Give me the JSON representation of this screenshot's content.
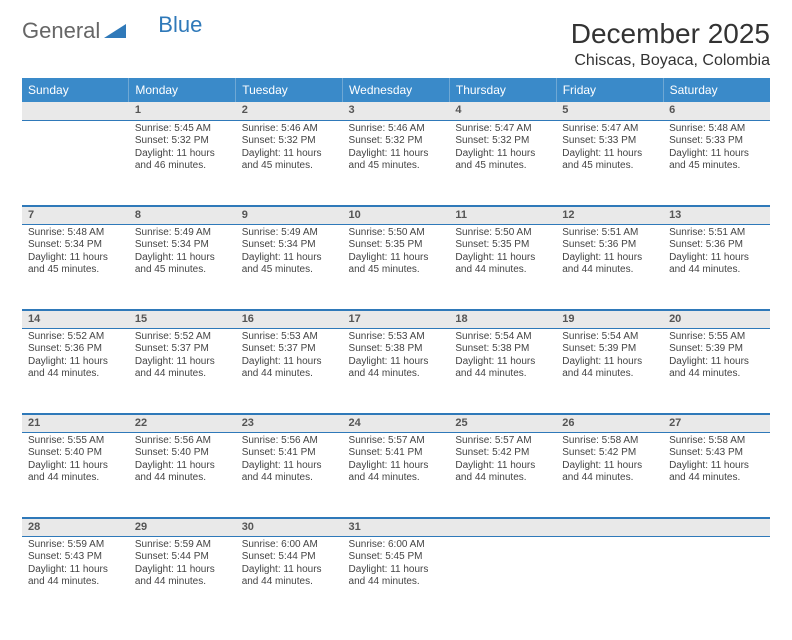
{
  "brand": {
    "part1": "General",
    "part2": "Blue"
  },
  "title": "December 2025",
  "location": "Chiscas, Boyaca, Colombia",
  "colors": {
    "header_bg": "#3a8ac9",
    "rule": "#2f79b9",
    "daynum_bg": "#e9e9e9",
    "text": "#333333"
  },
  "weekdays": [
    "Sunday",
    "Monday",
    "Tuesday",
    "Wednesday",
    "Thursday",
    "Friday",
    "Saturday"
  ],
  "weeks": [
    [
      null,
      {
        "n": "1",
        "sr": "Sunrise: 5:45 AM",
        "ss": "Sunset: 5:32 PM",
        "d1": "Daylight: 11 hours",
        "d2": "and 46 minutes."
      },
      {
        "n": "2",
        "sr": "Sunrise: 5:46 AM",
        "ss": "Sunset: 5:32 PM",
        "d1": "Daylight: 11 hours",
        "d2": "and 45 minutes."
      },
      {
        "n": "3",
        "sr": "Sunrise: 5:46 AM",
        "ss": "Sunset: 5:32 PM",
        "d1": "Daylight: 11 hours",
        "d2": "and 45 minutes."
      },
      {
        "n": "4",
        "sr": "Sunrise: 5:47 AM",
        "ss": "Sunset: 5:32 PM",
        "d1": "Daylight: 11 hours",
        "d2": "and 45 minutes."
      },
      {
        "n": "5",
        "sr": "Sunrise: 5:47 AM",
        "ss": "Sunset: 5:33 PM",
        "d1": "Daylight: 11 hours",
        "d2": "and 45 minutes."
      },
      {
        "n": "6",
        "sr": "Sunrise: 5:48 AM",
        "ss": "Sunset: 5:33 PM",
        "d1": "Daylight: 11 hours",
        "d2": "and 45 minutes."
      }
    ],
    [
      {
        "n": "7",
        "sr": "Sunrise: 5:48 AM",
        "ss": "Sunset: 5:34 PM",
        "d1": "Daylight: 11 hours",
        "d2": "and 45 minutes."
      },
      {
        "n": "8",
        "sr": "Sunrise: 5:49 AM",
        "ss": "Sunset: 5:34 PM",
        "d1": "Daylight: 11 hours",
        "d2": "and 45 minutes."
      },
      {
        "n": "9",
        "sr": "Sunrise: 5:49 AM",
        "ss": "Sunset: 5:34 PM",
        "d1": "Daylight: 11 hours",
        "d2": "and 45 minutes."
      },
      {
        "n": "10",
        "sr": "Sunrise: 5:50 AM",
        "ss": "Sunset: 5:35 PM",
        "d1": "Daylight: 11 hours",
        "d2": "and 45 minutes."
      },
      {
        "n": "11",
        "sr": "Sunrise: 5:50 AM",
        "ss": "Sunset: 5:35 PM",
        "d1": "Daylight: 11 hours",
        "d2": "and 44 minutes."
      },
      {
        "n": "12",
        "sr": "Sunrise: 5:51 AM",
        "ss": "Sunset: 5:36 PM",
        "d1": "Daylight: 11 hours",
        "d2": "and 44 minutes."
      },
      {
        "n": "13",
        "sr": "Sunrise: 5:51 AM",
        "ss": "Sunset: 5:36 PM",
        "d1": "Daylight: 11 hours",
        "d2": "and 44 minutes."
      }
    ],
    [
      {
        "n": "14",
        "sr": "Sunrise: 5:52 AM",
        "ss": "Sunset: 5:36 PM",
        "d1": "Daylight: 11 hours",
        "d2": "and 44 minutes."
      },
      {
        "n": "15",
        "sr": "Sunrise: 5:52 AM",
        "ss": "Sunset: 5:37 PM",
        "d1": "Daylight: 11 hours",
        "d2": "and 44 minutes."
      },
      {
        "n": "16",
        "sr": "Sunrise: 5:53 AM",
        "ss": "Sunset: 5:37 PM",
        "d1": "Daylight: 11 hours",
        "d2": "and 44 minutes."
      },
      {
        "n": "17",
        "sr": "Sunrise: 5:53 AM",
        "ss": "Sunset: 5:38 PM",
        "d1": "Daylight: 11 hours",
        "d2": "and 44 minutes."
      },
      {
        "n": "18",
        "sr": "Sunrise: 5:54 AM",
        "ss": "Sunset: 5:38 PM",
        "d1": "Daylight: 11 hours",
        "d2": "and 44 minutes."
      },
      {
        "n": "19",
        "sr": "Sunrise: 5:54 AM",
        "ss": "Sunset: 5:39 PM",
        "d1": "Daylight: 11 hours",
        "d2": "and 44 minutes."
      },
      {
        "n": "20",
        "sr": "Sunrise: 5:55 AM",
        "ss": "Sunset: 5:39 PM",
        "d1": "Daylight: 11 hours",
        "d2": "and 44 minutes."
      }
    ],
    [
      {
        "n": "21",
        "sr": "Sunrise: 5:55 AM",
        "ss": "Sunset: 5:40 PM",
        "d1": "Daylight: 11 hours",
        "d2": "and 44 minutes."
      },
      {
        "n": "22",
        "sr": "Sunrise: 5:56 AM",
        "ss": "Sunset: 5:40 PM",
        "d1": "Daylight: 11 hours",
        "d2": "and 44 minutes."
      },
      {
        "n": "23",
        "sr": "Sunrise: 5:56 AM",
        "ss": "Sunset: 5:41 PM",
        "d1": "Daylight: 11 hours",
        "d2": "and 44 minutes."
      },
      {
        "n": "24",
        "sr": "Sunrise: 5:57 AM",
        "ss": "Sunset: 5:41 PM",
        "d1": "Daylight: 11 hours",
        "d2": "and 44 minutes."
      },
      {
        "n": "25",
        "sr": "Sunrise: 5:57 AM",
        "ss": "Sunset: 5:42 PM",
        "d1": "Daylight: 11 hours",
        "d2": "and 44 minutes."
      },
      {
        "n": "26",
        "sr": "Sunrise: 5:58 AM",
        "ss": "Sunset: 5:42 PM",
        "d1": "Daylight: 11 hours",
        "d2": "and 44 minutes."
      },
      {
        "n": "27",
        "sr": "Sunrise: 5:58 AM",
        "ss": "Sunset: 5:43 PM",
        "d1": "Daylight: 11 hours",
        "d2": "and 44 minutes."
      }
    ],
    [
      {
        "n": "28",
        "sr": "Sunrise: 5:59 AM",
        "ss": "Sunset: 5:43 PM",
        "d1": "Daylight: 11 hours",
        "d2": "and 44 minutes."
      },
      {
        "n": "29",
        "sr": "Sunrise: 5:59 AM",
        "ss": "Sunset: 5:44 PM",
        "d1": "Daylight: 11 hours",
        "d2": "and 44 minutes."
      },
      {
        "n": "30",
        "sr": "Sunrise: 6:00 AM",
        "ss": "Sunset: 5:44 PM",
        "d1": "Daylight: 11 hours",
        "d2": "and 44 minutes."
      },
      {
        "n": "31",
        "sr": "Sunrise: 6:00 AM",
        "ss": "Sunset: 5:45 PM",
        "d1": "Daylight: 11 hours",
        "d2": "and 44 minutes."
      },
      null,
      null,
      null
    ]
  ]
}
